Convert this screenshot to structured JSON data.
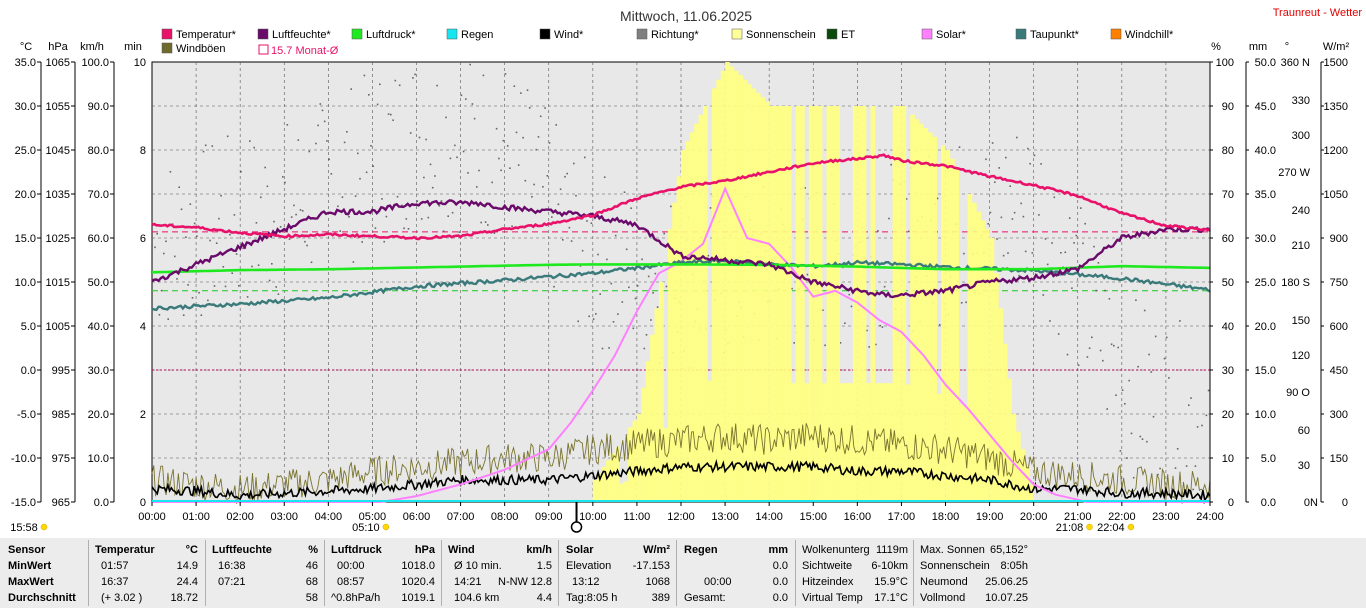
{
  "title": "Mittwoch, 11.06.2025",
  "site": "Traunreut - Wetter",
  "legend": [
    {
      "label": "Temperatur*",
      "color": "#e8126a"
    },
    {
      "label": "Luftfeuchte*",
      "color": "#6a0a6a"
    },
    {
      "label": "Luftdruck*",
      "color": "#1ee81e"
    },
    {
      "label": "Regen",
      "color": "#16e6f0"
    },
    {
      "label": "Wind*",
      "color": "#000000"
    },
    {
      "label": "Richtung*",
      "color": "#808080"
    },
    {
      "label": "Sonnenschein",
      "color": "#ffff99"
    },
    {
      "label": "ET",
      "color": "#0a4a0a"
    },
    {
      "label": "Solar*",
      "color": "#ff80ff"
    },
    {
      "label": "Taupunkt*",
      "color": "#3a7a7a"
    },
    {
      "label": "Windchill*",
      "color": "#ff8000"
    },
    {
      "label": "Windböen",
      "color": "#6e6a2e"
    },
    {
      "label": "15.7 Monat-Ø",
      "color": "#e8126a"
    }
  ],
  "axes": {
    "left_units": [
      "°C",
      "hPa",
      "km/h",
      "min"
    ],
    "right_units": [
      "%",
      "mm",
      "°",
      "W/m²"
    ],
    "temp": [
      "35.0",
      "30.0",
      "25.0",
      "20.0",
      "15.0",
      "10.0",
      "5.0",
      "0.0",
      "-5.0",
      "-10.0",
      "-15.0"
    ],
    "pressure": [
      "1065",
      "1055",
      "1045",
      "1035",
      "1025",
      "1015",
      "1005",
      "995",
      "985",
      "975",
      "965"
    ],
    "wind": [
      "100.0",
      "90.0",
      "80.0",
      "70.0",
      "60.0",
      "50.0",
      "40.0",
      "30.0",
      "20.0",
      "10.0",
      "0.0"
    ],
    "minutes": [
      {
        "v": "10",
        "i": 0
      },
      {
        "v": "8",
        "i": 2
      },
      {
        "v": "6",
        "i": 4
      },
      {
        "v": "4",
        "i": 6
      },
      {
        "v": "2",
        "i": 8
      },
      {
        "v": "0",
        "i": 10
      }
    ],
    "humidity": [
      "100",
      "90",
      "80",
      "70",
      "60",
      "50",
      "40",
      "30",
      "20",
      "10",
      "0"
    ],
    "rain": [
      "50.0",
      "45.0",
      "40.0",
      "35.0",
      "30.0",
      "25.0",
      "20.0",
      "15.0",
      "10.0",
      "5.0",
      "0.0"
    ],
    "direction": [
      {
        "v": "360 N",
        "y": 62
      },
      {
        "v": "330",
        "y": 100
      },
      {
        "v": "300",
        "y": 135
      },
      {
        "v": "270 W",
        "y": 172
      },
      {
        "v": "240",
        "y": 210
      },
      {
        "v": "210",
        "y": 245
      },
      {
        "v": "180 S",
        "y": 282
      },
      {
        "v": "150",
        "y": 320
      },
      {
        "v": "120",
        "y": 355
      },
      {
        "v": "90 O",
        "y": 392
      },
      {
        "v": "60",
        "y": 430
      },
      {
        "v": "30",
        "y": 465
      },
      {
        "v": "0",
        "y": 502
      },
      {
        "v": "N",
        "y": 502
      }
    ],
    "solar": [
      "1500",
      "1350",
      "1200",
      "1050",
      "900",
      "750",
      "600",
      "450",
      "300",
      "150",
      "0"
    ],
    "time": [
      "00:00",
      "01:00",
      "02:00",
      "03:00",
      "04:00",
      "05:00",
      "06:00",
      "07:00",
      "08:00",
      "09:00",
      "10:00",
      "11:00",
      "12:00",
      "13:00",
      "14:00",
      "15:00",
      "16:00",
      "17:00",
      "18:00",
      "19:00",
      "20:00",
      "21:00",
      "22:00",
      "23:00",
      "24:00"
    ]
  },
  "markers": [
    {
      "label": "15:58",
      "h": -1.2,
      "row": 2
    },
    {
      "label": "05:10",
      "h": 5.17,
      "row": 2
    },
    {
      "label": "21:08",
      "h": 21.13,
      "row": 2
    },
    {
      "label": "22:04",
      "h": 22.07,
      "row": 2
    }
  ],
  "chart_data": {
    "type": "line",
    "x_unit": "time",
    "x_range": [
      "00:00",
      "24:00"
    ],
    "monthly_avg_temp": 15.7,
    "series": [
      {
        "name": "Temperatur*",
        "unit": "°C",
        "points": [
          [
            0,
            16.5
          ],
          [
            1,
            16.2
          ],
          [
            2,
            15.6
          ],
          [
            3,
            15.2
          ],
          [
            4,
            15.4
          ],
          [
            5,
            15.2
          ],
          [
            6,
            15.0
          ],
          [
            7,
            15.2
          ],
          [
            8,
            16.0
          ],
          [
            9,
            16.6
          ],
          [
            10,
            17.6
          ],
          [
            11,
            19.5
          ],
          [
            12,
            20.8
          ],
          [
            13,
            21.5
          ],
          [
            14,
            22.5
          ],
          [
            15,
            23.5
          ],
          [
            15.5,
            23.8
          ],
          [
            16,
            24.0
          ],
          [
            16.6,
            24.4
          ],
          [
            17,
            23.8
          ],
          [
            18,
            23.2
          ],
          [
            19,
            22.0
          ],
          [
            20,
            21.0
          ],
          [
            21,
            19.8
          ],
          [
            22,
            17.8
          ],
          [
            23,
            16.4
          ],
          [
            24,
            15.9
          ]
        ]
      },
      {
        "name": "Luftfeuchte*",
        "unit": "%",
        "points": [
          [
            0,
            50
          ],
          [
            1,
            54
          ],
          [
            2,
            58
          ],
          [
            3,
            62
          ],
          [
            3.5,
            64
          ],
          [
            4,
            66
          ],
          [
            5,
            66
          ],
          [
            6,
            68
          ],
          [
            7,
            68
          ],
          [
            7.35,
            68
          ],
          [
            8,
            67
          ],
          [
            9,
            66
          ],
          [
            10,
            65
          ],
          [
            11,
            63
          ],
          [
            12,
            56
          ],
          [
            13,
            55
          ],
          [
            14,
            54
          ],
          [
            15,
            50
          ],
          [
            16,
            48
          ],
          [
            16.6,
            47
          ],
          [
            17,
            47
          ],
          [
            18,
            48
          ],
          [
            19,
            50
          ],
          [
            20,
            51
          ],
          [
            21,
            53
          ],
          [
            22,
            60
          ],
          [
            23,
            62
          ],
          [
            24,
            62
          ]
        ]
      },
      {
        "name": "Luftdruck*",
        "unit": "hPa",
        "points": [
          [
            0,
            1017.2
          ],
          [
            2,
            1017.7
          ],
          [
            4,
            1017.9
          ],
          [
            6,
            1018.3
          ],
          [
            8.95,
            1018.9
          ],
          [
            10,
            1019.0
          ],
          [
            12,
            1019.0
          ],
          [
            14,
            1018.9
          ],
          [
            16,
            1018.5
          ],
          [
            18,
            1017.9
          ],
          [
            20,
            1017.9
          ],
          [
            22,
            1018.6
          ],
          [
            24,
            1018.2
          ]
        ]
      },
      {
        "name": "Taupunkt*",
        "unit": "°C",
        "points": [
          [
            0,
            7.0
          ],
          [
            2,
            7.5
          ],
          [
            4,
            8.2
          ],
          [
            6,
            9.5
          ],
          [
            8,
            10.2
          ],
          [
            10,
            11.0
          ],
          [
            12,
            12.2
          ],
          [
            13,
            12.4
          ],
          [
            14,
            12.0
          ],
          [
            15,
            11.8
          ],
          [
            16,
            12.2
          ],
          [
            17,
            12.0
          ],
          [
            18,
            11.7
          ],
          [
            20,
            11.3
          ],
          [
            22,
            10.4
          ],
          [
            24,
            9.1
          ]
        ]
      },
      {
        "name": "Solar*",
        "unit": "W/m²",
        "points": [
          [
            0,
            0
          ],
          [
            5.2,
            0
          ],
          [
            6,
            20
          ],
          [
            7,
            60
          ],
          [
            8,
            110
          ],
          [
            9,
            180
          ],
          [
            9.5,
            270
          ],
          [
            10,
            380
          ],
          [
            10.5,
            500
          ],
          [
            11,
            650
          ],
          [
            11.5,
            780
          ],
          [
            12,
            820
          ],
          [
            12.5,
            880
          ],
          [
            13,
            1068
          ],
          [
            13.5,
            900
          ],
          [
            14,
            880
          ],
          [
            14.5,
            800
          ],
          [
            15,
            700
          ],
          [
            15.5,
            720
          ],
          [
            16,
            680
          ],
          [
            16.5,
            620
          ],
          [
            17,
            580
          ],
          [
            17.5,
            500
          ],
          [
            18,
            400
          ],
          [
            18.5,
            320
          ],
          [
            19,
            230
          ],
          [
            19.5,
            140
          ],
          [
            20,
            60
          ],
          [
            20.5,
            25
          ],
          [
            21,
            8
          ],
          [
            21.2,
            0
          ],
          [
            24,
            0
          ]
        ]
      },
      {
        "name": "Wind*",
        "unit": "km/h",
        "points": [
          [
            0,
            3
          ],
          [
            1,
            2.5
          ],
          [
            2,
            1.5
          ],
          [
            3,
            2
          ],
          [
            4,
            2.5
          ],
          [
            5,
            3
          ],
          [
            6,
            4
          ],
          [
            7,
            5
          ],
          [
            8,
            5
          ],
          [
            9,
            5
          ],
          [
            10,
            6
          ],
          [
            11,
            7
          ],
          [
            12,
            8
          ],
          [
            13,
            8
          ],
          [
            14,
            8
          ],
          [
            15,
            8
          ],
          [
            16,
            7
          ],
          [
            17,
            7
          ],
          [
            18,
            6
          ],
          [
            19,
            5
          ],
          [
            20,
            3
          ],
          [
            21,
            3
          ],
          [
            22,
            2
          ],
          [
            23,
            2
          ],
          [
            24,
            1.5
          ]
        ]
      },
      {
        "name": "Windböen",
        "unit": "km/h",
        "points": [
          [
            0,
            5
          ],
          [
            1,
            4
          ],
          [
            2,
            3
          ],
          [
            3,
            4
          ],
          [
            4,
            5
          ],
          [
            5,
            7
          ],
          [
            6,
            8
          ],
          [
            7,
            9
          ],
          [
            8,
            10
          ],
          [
            9,
            10
          ],
          [
            10,
            12
          ],
          [
            11,
            13
          ],
          [
            12,
            14
          ],
          [
            13,
            15
          ],
          [
            14,
            14
          ],
          [
            15,
            15
          ],
          [
            16,
            14
          ],
          [
            17,
            13
          ],
          [
            18,
            12
          ],
          [
            19,
            10
          ],
          [
            20,
            7
          ],
          [
            21,
            6
          ],
          [
            22,
            5
          ],
          [
            23,
            4
          ],
          [
            24,
            4
          ]
        ]
      },
      {
        "name": "Richtung*",
        "unit": "°",
        "points": [
          [
            0,
            210
          ],
          [
            3,
            240
          ],
          [
            6,
            300
          ],
          [
            8,
            290
          ],
          [
            10,
            200
          ],
          [
            12,
            180
          ],
          [
            14,
            190
          ],
          [
            16,
            200
          ],
          [
            18,
            220
          ],
          [
            20,
            250
          ],
          [
            22,
            100
          ],
          [
            24,
            60
          ]
        ]
      },
      {
        "name": "Sonnenschein",
        "unit": "min",
        "points": [
          [
            10,
            0.5
          ],
          [
            11,
            2
          ],
          [
            12,
            8
          ],
          [
            13,
            10
          ],
          [
            14,
            9
          ],
          [
            15,
            9
          ],
          [
            16,
            9
          ],
          [
            17,
            9
          ],
          [
            18,
            8
          ],
          [
            19,
            6
          ],
          [
            19.5,
            2
          ],
          [
            20,
            0
          ]
        ]
      }
    ]
  },
  "stats": {
    "sensor": {
      "title": "Sensor",
      "rows": [
        "MinWert",
        "MaxWert",
        "Durchschnitt"
      ]
    },
    "temp": {
      "title": "Temperatur",
      "unit": "°C",
      "rows": [
        [
          "01:57",
          "14.9"
        ],
        [
          "16:37",
          "24.4"
        ],
        [
          "(+ 3.02 )",
          "18.72"
        ]
      ]
    },
    "hum": {
      "title": "Luftfeuchte",
      "unit": "%",
      "rows": [
        [
          "16:38",
          "46"
        ],
        [
          "07:21",
          "68"
        ],
        [
          "",
          "58"
        ]
      ]
    },
    "press": {
      "title": "Luftdruck",
      "unit": "hPa",
      "rows": [
        [
          "00:00",
          "1018.0"
        ],
        [
          "08:57",
          "1020.4"
        ],
        [
          "^0.8hPa/h",
          "1019.1"
        ]
      ]
    },
    "wind": {
      "title": "Wind",
      "unit": "km/h",
      "rows": [
        [
          "Ø 10 min.",
          "",
          "1.5"
        ],
        [
          "14:21",
          "N-NW",
          "12.8"
        ],
        [
          "104.6 km",
          "",
          "4.4"
        ]
      ]
    },
    "solar": {
      "title": "Solar",
      "unit": "W/m²",
      "rows": [
        [
          "Elevation",
          "-17.153"
        ],
        [
          "13:12",
          "1068"
        ],
        [
          "Tag:8:05 h",
          "389"
        ]
      ]
    },
    "rain": {
      "title": "Regen",
      "unit": "mm",
      "rows": [
        [
          "",
          ""
        ],
        [
          "00:00",
          "0.0"
        ],
        [
          "Gesamt:",
          "0.0"
        ]
      ],
      "top": "0.0"
    },
    "misc": {
      "rows": [
        [
          "Wolkenunterg",
          "1119m"
        ],
        [
          "Sichtweite",
          "6-10km"
        ],
        [
          "Hitzeindex",
          "15.9°C"
        ],
        [
          "Virtual Temp",
          "17.1°C"
        ]
      ]
    },
    "sun": {
      "rows": [
        [
          "Max. Sonnen",
          "65,152°"
        ],
        [
          "Sonnenschein",
          "8:05h"
        ],
        [
          "Neumond",
          "25.06.25"
        ],
        [
          "Vollmond",
          "10.07.25"
        ]
      ]
    }
  }
}
